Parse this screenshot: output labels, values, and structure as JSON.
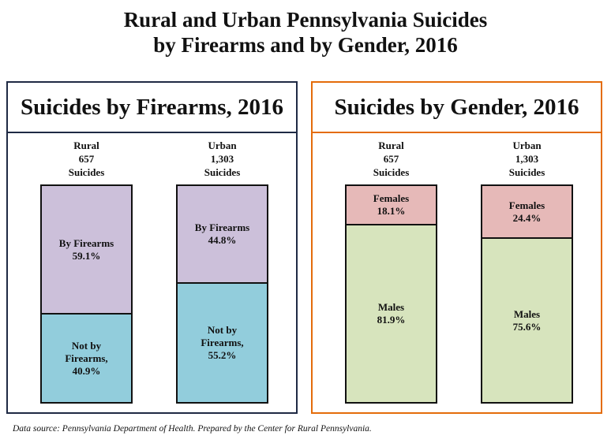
{
  "title": [
    "Rural and Urban Pennsylvania Suicides",
    "by Firearms and by Gender, 2016"
  ],
  "source": "Data source: Pennsylvania Department of Health. Prepared by the Center for Rural Pennsylvania.",
  "chart_data": [
    {
      "type": "stacked-bar-100",
      "title": "Suicides by Firearms, 2016",
      "frame_color": "#1f2a44",
      "categories": [
        "Rural",
        "Urban"
      ],
      "totals": [
        657,
        1303
      ],
      "total_labels": [
        "657",
        "1,303"
      ],
      "total_unit": "Suicides",
      "series": [
        {
          "name": "Not by Firearms,",
          "color": "#92cddc",
          "values": [
            40.9,
            55.2
          ],
          "value_labels": [
            "40.9%",
            "55.2%"
          ]
        },
        {
          "name": "By Firearms",
          "color": "#ccc0da",
          "values": [
            59.1,
            44.8
          ],
          "value_labels": [
            "59.1%",
            "44.8%"
          ]
        }
      ]
    },
    {
      "type": "stacked-bar-100",
      "title": "Suicides by Gender, 2016",
      "frame_color": "#e46c0a",
      "categories": [
        "Rural",
        "Urban"
      ],
      "totals": [
        657,
        1303
      ],
      "total_labels": [
        "657",
        "1,303"
      ],
      "total_unit": "Suicides",
      "series": [
        {
          "name": "Males",
          "color": "#d7e4bd",
          "values": [
            81.9,
            75.6
          ],
          "value_labels": [
            "81.9%",
            "75.6%"
          ]
        },
        {
          "name": "Females",
          "color": "#e6b9b8",
          "values": [
            18.1,
            24.4
          ],
          "value_labels": [
            "18.1%",
            "24.4%"
          ]
        }
      ]
    }
  ]
}
